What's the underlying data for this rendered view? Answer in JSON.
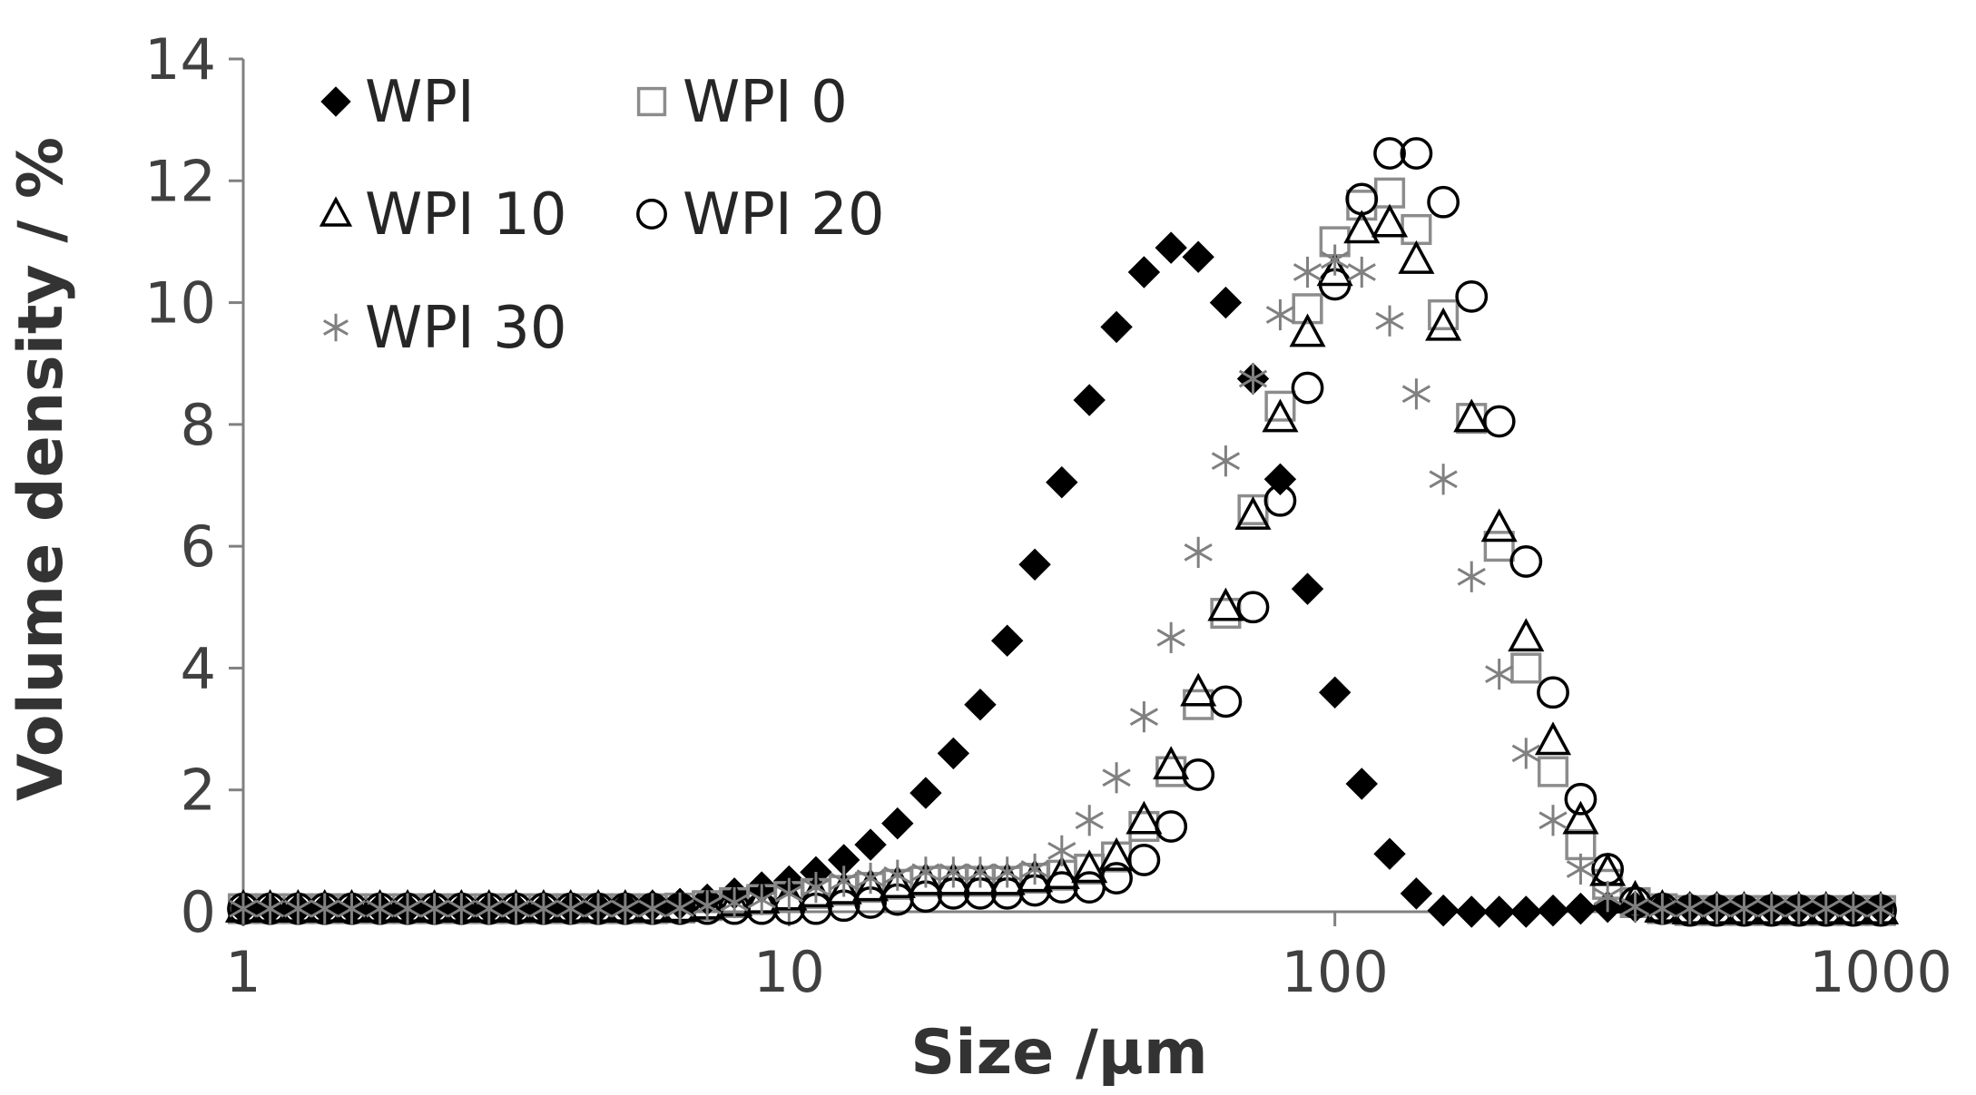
{
  "chart_data": {
    "type": "scatter",
    "xlabel": "Size /μm",
    "ylabel": "Volume density / %",
    "x_scale": "log",
    "xlim": [
      1,
      1000
    ],
    "ylim": [
      0,
      14
    ],
    "x_ticks": [
      "1",
      "10",
      "100",
      "1000"
    ],
    "y_ticks": [
      "0",
      "2",
      "4",
      "6",
      "8",
      "10",
      "12",
      "14"
    ],
    "grid": false,
    "legend_placement": "top-left",
    "series": [
      {
        "name": "WPI",
        "marker": "filled-diamond",
        "color": "#000000",
        "x": [
          1,
          1.12,
          1.26,
          1.41,
          1.58,
          1.78,
          2,
          2.24,
          2.51,
          2.82,
          3.16,
          3.55,
          3.98,
          4.47,
          5.01,
          5.62,
          6.31,
          7.08,
          7.94,
          8.91,
          10,
          11.2,
          12.6,
          14.1,
          15.8,
          17.8,
          20,
          22.4,
          25.1,
          28.2,
          31.6,
          35.5,
          39.8,
          44.7,
          50.1,
          56.2,
          63.1,
          70.8,
          79.4,
          89.1,
          100,
          112,
          126,
          141,
          158,
          178,
          200,
          224,
          251,
          282,
          316,
          355,
          398,
          447,
          501,
          562,
          631,
          708,
          794,
          891,
          1000
        ],
        "y": [
          0.05,
          0.05,
          0.05,
          0.05,
          0.05,
          0.05,
          0.05,
          0.05,
          0.05,
          0.05,
          0.05,
          0.05,
          0.06,
          0.07,
          0.08,
          0.1,
          0.13,
          0.2,
          0.3,
          0.4,
          0.5,
          0.65,
          0.85,
          1.1,
          1.45,
          1.95,
          2.6,
          3.4,
          4.45,
          5.7,
          7.05,
          8.4,
          9.6,
          10.5,
          10.9,
          10.75,
          10,
          8.75,
          7.1,
          5.3,
          3.6,
          2.1,
          0.95,
          0.3,
          0.02,
          0,
          0,
          0,
          0.02,
          0.05,
          0.08,
          0.08,
          0.08,
          0.07,
          0.07,
          0.06,
          0.06,
          0.06,
          0.06,
          0.06,
          0.06
        ]
      },
      {
        "name": "WPI 0",
        "marker": "open-square",
        "color": "#8c8c8c",
        "x": [
          1,
          1.12,
          1.26,
          1.41,
          1.58,
          1.78,
          2,
          2.24,
          2.51,
          2.82,
          3.16,
          3.55,
          3.98,
          4.47,
          5.01,
          5.62,
          6.31,
          7.08,
          7.94,
          8.91,
          10,
          11.2,
          12.6,
          14.1,
          15.8,
          17.8,
          20,
          22.4,
          25.1,
          28.2,
          31.6,
          35.5,
          39.8,
          44.7,
          50.1,
          56.2,
          63.1,
          70.8,
          79.4,
          89.1,
          100,
          112,
          126,
          141,
          158,
          178,
          200,
          224,
          251,
          282,
          316,
          355,
          398,
          447,
          501,
          562,
          631,
          708,
          794,
          891,
          1000
        ],
        "y": [
          0.05,
          0.05,
          0.05,
          0.05,
          0.05,
          0.05,
          0.05,
          0.05,
          0.05,
          0.05,
          0.05,
          0.05,
          0.05,
          0.05,
          0.05,
          0.05,
          0.06,
          0.1,
          0.15,
          0.2,
          0.25,
          0.3,
          0.35,
          0.4,
          0.45,
          0.5,
          0.5,
          0.5,
          0.5,
          0.55,
          0.6,
          0.7,
          0.9,
          1.4,
          2.3,
          3.4,
          4.9,
          6.6,
          8.3,
          9.9,
          11,
          11.6,
          11.8,
          11.2,
          9.8,
          8.1,
          6,
          4,
          2.3,
          1.1,
          0.45,
          0.15,
          0.05,
          0.02,
          0.02,
          0.02,
          0.02,
          0.02,
          0.02,
          0.02,
          0.02
        ]
      },
      {
        "name": "WPI 10",
        "marker": "open-triangle",
        "color": "#000000",
        "x": [
          1,
          1.12,
          1.26,
          1.41,
          1.58,
          1.78,
          2,
          2.24,
          2.51,
          2.82,
          3.16,
          3.55,
          3.98,
          4.47,
          5.01,
          5.62,
          6.31,
          7.08,
          7.94,
          8.91,
          10,
          11.2,
          12.6,
          14.1,
          15.8,
          17.8,
          20,
          22.4,
          25.1,
          28.2,
          31.6,
          35.5,
          39.8,
          44.7,
          50.1,
          56.2,
          63.1,
          70.8,
          79.4,
          89.1,
          100,
          112,
          126,
          141,
          158,
          178,
          200,
          224,
          251,
          282,
          316,
          355,
          398,
          447,
          501,
          562,
          631,
          708,
          794,
          891,
          1000
        ],
        "y": [
          0.05,
          0.05,
          0.05,
          0.05,
          0.05,
          0.05,
          0.05,
          0.05,
          0.05,
          0.05,
          0.05,
          0.05,
          0.05,
          0.05,
          0.05,
          0.05,
          0.06,
          0.1,
          0.15,
          0.2,
          0.25,
          0.3,
          0.35,
          0.4,
          0.45,
          0.5,
          0.5,
          0.5,
          0.5,
          0.55,
          0.6,
          0.7,
          0.9,
          1.5,
          2.4,
          3.6,
          5,
          6.5,
          8.1,
          9.5,
          10.5,
          11.2,
          11.3,
          10.7,
          9.6,
          8.1,
          6.3,
          4.5,
          2.8,
          1.5,
          0.65,
          0.2,
          0.05,
          0.02,
          0.02,
          0.02,
          0.02,
          0.02,
          0.02,
          0.02,
          0.02
        ]
      },
      {
        "name": "WPI 20",
        "marker": "open-circle",
        "color": "#000000",
        "x": [
          1,
          1.12,
          1.26,
          1.41,
          1.58,
          1.78,
          2,
          2.24,
          2.51,
          2.82,
          3.16,
          3.55,
          3.98,
          4.47,
          5.01,
          5.62,
          6.31,
          7.08,
          7.94,
          8.91,
          10,
          11.2,
          12.6,
          14.1,
          15.8,
          17.8,
          20,
          22.4,
          25.1,
          28.2,
          31.6,
          35.5,
          39.8,
          44.7,
          50.1,
          56.2,
          63.1,
          70.8,
          79.4,
          89.1,
          100,
          112,
          126,
          141,
          158,
          178,
          200,
          224,
          251,
          282,
          316,
          355,
          398,
          447,
          501,
          562,
          631,
          708,
          794,
          891,
          1000
        ],
        "y": [
          0.05,
          0.05,
          0.05,
          0.05,
          0.05,
          0.05,
          0.05,
          0.05,
          0.05,
          0.05,
          0.05,
          0.05,
          0.05,
          0.05,
          0.05,
          0.05,
          0.05,
          0.05,
          0.05,
          0.05,
          0.05,
          0.05,
          0.1,
          0.15,
          0.2,
          0.25,
          0.3,
          0.3,
          0.3,
          0.35,
          0.4,
          0.4,
          0.55,
          0.85,
          1.4,
          2.25,
          3.45,
          5,
          6.75,
          8.6,
          10.3,
          11.7,
          12.45,
          12.45,
          11.65,
          10.1,
          8.05,
          5.75,
          3.6,
          1.85,
          0.7,
          0.15,
          0.05,
          0.02,
          0.02,
          0.02,
          0.02,
          0.02,
          0.02,
          0.02,
          0.02
        ]
      },
      {
        "name": "WPI 30",
        "marker": "asterisk",
        "color": "#808080",
        "x": [
          1,
          1.12,
          1.26,
          1.41,
          1.58,
          1.78,
          2,
          2.24,
          2.51,
          2.82,
          3.16,
          3.55,
          3.98,
          4.47,
          5.01,
          5.62,
          6.31,
          7.08,
          7.94,
          8.91,
          10,
          11.2,
          12.6,
          14.1,
          15.8,
          17.8,
          20,
          22.4,
          25.1,
          28.2,
          31.6,
          35.5,
          39.8,
          44.7,
          50.1,
          56.2,
          63.1,
          70.8,
          79.4,
          89.1,
          100,
          112,
          126,
          141,
          158,
          178,
          200,
          224,
          251,
          282,
          316,
          355,
          398,
          447,
          501,
          562,
          631,
          708,
          794,
          891,
          1000
        ],
        "y": [
          0.05,
          0.05,
          0.05,
          0.05,
          0.05,
          0.05,
          0.05,
          0.05,
          0.05,
          0.05,
          0.05,
          0.05,
          0.05,
          0.05,
          0.05,
          0.05,
          0.06,
          0.1,
          0.15,
          0.2,
          0.3,
          0.4,
          0.5,
          0.55,
          0.6,
          0.65,
          0.65,
          0.65,
          0.65,
          0.7,
          1,
          1.5,
          2.2,
          3.2,
          4.5,
          5.9,
          7.4,
          8.75,
          9.8,
          10.5,
          10.7,
          10.5,
          9.7,
          8.5,
          7.1,
          5.5,
          3.9,
          2.6,
          1.5,
          0.7,
          0.25,
          0.08,
          0.05,
          0.05,
          0.05,
          0.05,
          0.05,
          0.05,
          0.05,
          0.05,
          0.05
        ]
      }
    ]
  }
}
